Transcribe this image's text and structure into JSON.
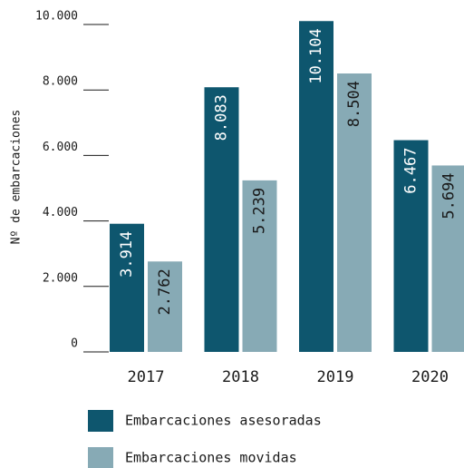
{
  "chart_data": {
    "type": "bar",
    "y_label": "Nº de embarcaciones",
    "categories": [
      "2017",
      "2018",
      "2019",
      "2020"
    ],
    "series": [
      {
        "name": "Embarcaciones asesoradas",
        "color": "#0e566e",
        "values": [
          3914,
          8083,
          10104,
          6467
        ],
        "value_labels": [
          "3.914",
          "8.083",
          "10.104",
          "6.467"
        ]
      },
      {
        "name": "Embarcaciones movidas",
        "color": "#87aab5",
        "values": [
          2762,
          5239,
          8504,
          5694
        ],
        "value_labels": [
          "2.762",
          "5.239",
          "8.504",
          "5.694"
        ]
      }
    ],
    "ylim": [
      0,
      10000
    ],
    "yticks": [
      0,
      {
        "value": 2000,
        "label": "2.000"
      },
      {
        "value": 4000,
        "label": "4.000"
      },
      {
        "value": 6000,
        "label": "6.000"
      },
      {
        "value": 8000,
        "label": "8.000"
      },
      {
        "value": 10000,
        "label": "10.000"
      }
    ]
  }
}
